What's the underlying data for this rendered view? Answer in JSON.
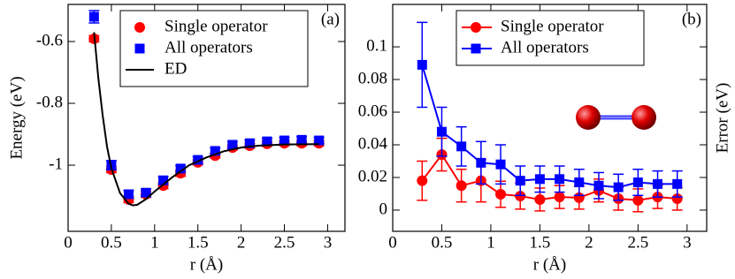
{
  "chart_data": [
    {
      "type": "scatter",
      "annotation": "(a)",
      "x_label": "r (Å)",
      "y_label": "Energy (eV)",
      "xlim": [
        0,
        3.2
      ],
      "xticks": [
        0,
        0.5,
        1,
        1.5,
        2,
        2.5,
        3
      ],
      "ylim": [
        -1.214,
        -0.48
      ],
      "yticks": [
        -1,
        -0.8,
        -0.6
      ],
      "legend": "upper right",
      "series": [
        {
          "name": "Single operator",
          "color": "#ff0000",
          "marker": "circle",
          "line": false,
          "x": [
            0.3,
            0.5,
            0.7,
            0.9,
            1.1,
            1.3,
            1.5,
            1.7,
            1.9,
            2.1,
            2.3,
            2.5,
            2.7,
            2.9
          ],
          "values": [
            -0.591,
            -1.014,
            -1.111,
            -1.094,
            -1.066,
            -1.026,
            -0.991,
            -0.969,
            -0.943,
            -0.937,
            -0.931,
            -0.929,
            -0.929,
            -0.929
          ],
          "errors": [
            0.01,
            0.01,
            0.01,
            0.01,
            0.01,
            0.01,
            0.008,
            0.008,
            0.008,
            0.008,
            0.008,
            0.008,
            0.008,
            0.008
          ]
        },
        {
          "name": "All operators",
          "color": "#0000ff",
          "marker": "square",
          "line": false,
          "x": [
            0.3,
            0.5,
            0.7,
            0.9,
            1.1,
            1.3,
            1.5,
            1.7,
            1.9,
            2.1,
            2.3,
            2.5,
            2.7,
            2.9
          ],
          "values": [
            -0.52,
            -1.0,
            -1.094,
            -1.089,
            -1.049,
            -1.011,
            -0.983,
            -0.954,
            -0.934,
            -0.929,
            -0.923,
            -0.92,
            -0.918,
            -0.92
          ],
          "errors": [
            0.02,
            0.015,
            0.012,
            0.012,
            0.012,
            0.01,
            0.01,
            0.01,
            0.01,
            0.01,
            0.01,
            0.01,
            0.01,
            0.01
          ]
        },
        {
          "name": "ED",
          "color": "#000000",
          "marker": "none",
          "line": true,
          "x": [
            0.3,
            0.35,
            0.4,
            0.45,
            0.5,
            0.6,
            0.7,
            0.75,
            0.8,
            0.9,
            1.0,
            1.2,
            1.4,
            1.6,
            1.8,
            2.0,
            2.2,
            2.5,
            2.9
          ],
          "values": [
            -0.57,
            -0.72,
            -0.84,
            -0.94,
            -1.01,
            -1.09,
            -1.125,
            -1.13,
            -1.128,
            -1.11,
            -1.085,
            -1.04,
            -1.0,
            -0.975,
            -0.955,
            -0.943,
            -0.937,
            -0.933,
            -0.932
          ]
        }
      ]
    },
    {
      "type": "line",
      "annotation": "(b)",
      "x_label": "r (Å)",
      "y_label": "Error (eV)",
      "xlim": [
        0,
        3.2
      ],
      "xticks": [
        0,
        0.5,
        1,
        1.5,
        2,
        2.5,
        3
      ],
      "ylim": [
        -0.013,
        0.126
      ],
      "yticks": [
        0,
        0.02,
        0.04,
        0.06,
        0.08,
        0.1
      ],
      "legend": "upper left",
      "series": [
        {
          "name": "Single operator",
          "color": "#ff0000",
          "marker": "circle",
          "line": true,
          "x": [
            0.3,
            0.5,
            0.7,
            0.9,
            1.1,
            1.3,
            1.5,
            1.7,
            1.9,
            2.1,
            2.3,
            2.5,
            2.7,
            2.9
          ],
          "values": [
            0.018,
            0.034,
            0.015,
            0.018,
            0.0097,
            0.0086,
            0.0065,
            0.008,
            0.0076,
            0.012,
            0.007,
            0.006,
            0.008,
            0.007
          ],
          "errors": [
            0.012,
            0.01,
            0.01,
            0.013,
            0.008,
            0.008,
            0.007,
            0.007,
            0.007,
            0.007,
            0.007,
            0.007,
            0.007,
            0.007
          ]
        },
        {
          "name": "All operators",
          "color": "#0000ff",
          "marker": "square",
          "line": true,
          "x": [
            0.3,
            0.5,
            0.7,
            0.9,
            1.1,
            1.3,
            1.5,
            1.7,
            1.9,
            2.1,
            2.3,
            2.5,
            2.7,
            2.9
          ],
          "values": [
            0.089,
            0.048,
            0.039,
            0.029,
            0.028,
            0.018,
            0.019,
            0.019,
            0.017,
            0.015,
            0.014,
            0.017,
            0.016,
            0.016
          ],
          "errors": [
            0.026,
            0.015,
            0.012,
            0.013,
            0.012,
            0.009,
            0.008,
            0.008,
            0.008,
            0.008,
            0.008,
            0.008,
            0.008,
            0.008
          ]
        }
      ]
    }
  ]
}
